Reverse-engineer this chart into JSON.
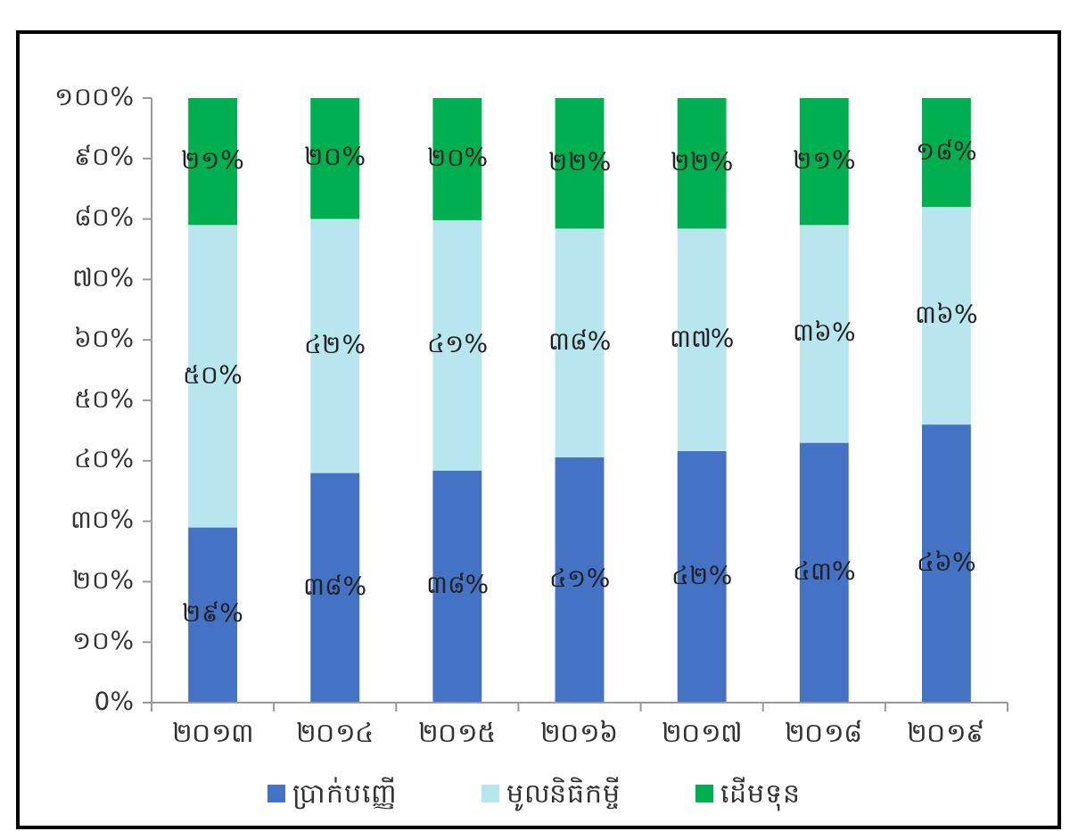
{
  "chart_data": {
    "type": "bar",
    "stacked": true,
    "categories": [
      "២០១៣",
      "២០១៤",
      "២០១៥",
      "២០១៦",
      "២០១៧",
      "២០១៨",
      "២០១៩"
    ],
    "series": [
      {
        "name": "ប្រាក់បញ្ញើ",
        "color": "#4472c4",
        "values": [
          29,
          38,
          38.4,
          40.6,
          41.6,
          43,
          46
        ],
        "value_labels": [
          "២៩%",
          "៣៨%",
          "៣៨%",
          "៤១%",
          "៤២%",
          "៤៣%",
          "៤៦%"
        ]
      },
      {
        "name": "មូលនិធិកម្ចី",
        "color": "#b8e6ef",
        "values": [
          50,
          42,
          41.4,
          37.8,
          36.8,
          36,
          36
        ],
        "value_labels": [
          "៥០%",
          "៤២%",
          "៤១%",
          "៣៨%",
          "៣៧%",
          "៣៦%",
          "៣៦%"
        ]
      },
      {
        "name": "ដើមទុន",
        "color": "#00b050",
        "values": [
          21,
          20,
          20.2,
          21.6,
          21.6,
          21,
          18
        ],
        "value_labels": [
          "២១%",
          "២០%",
          "២០%",
          "២២%",
          "២២%",
          "២១%",
          "១៨%"
        ]
      }
    ],
    "ylim": [
      0,
      100
    ],
    "yticks": [
      {
        "value": 0,
        "label": "0%"
      },
      {
        "value": 10,
        "label": "១០%"
      },
      {
        "value": 20,
        "label": "២០%"
      },
      {
        "value": 30,
        "label": "៣០%"
      },
      {
        "value": 40,
        "label": "៤០%"
      },
      {
        "value": 50,
        "label": "៥០%"
      },
      {
        "value": 60,
        "label": "៦០%"
      },
      {
        "value": 70,
        "label": "៧០%"
      },
      {
        "value": 80,
        "label": "៨០%"
      },
      {
        "value": 90,
        "label": "៩០%"
      },
      {
        "value": 100,
        "label": "១០០%"
      }
    ],
    "grid": false,
    "legend": "bottom"
  }
}
